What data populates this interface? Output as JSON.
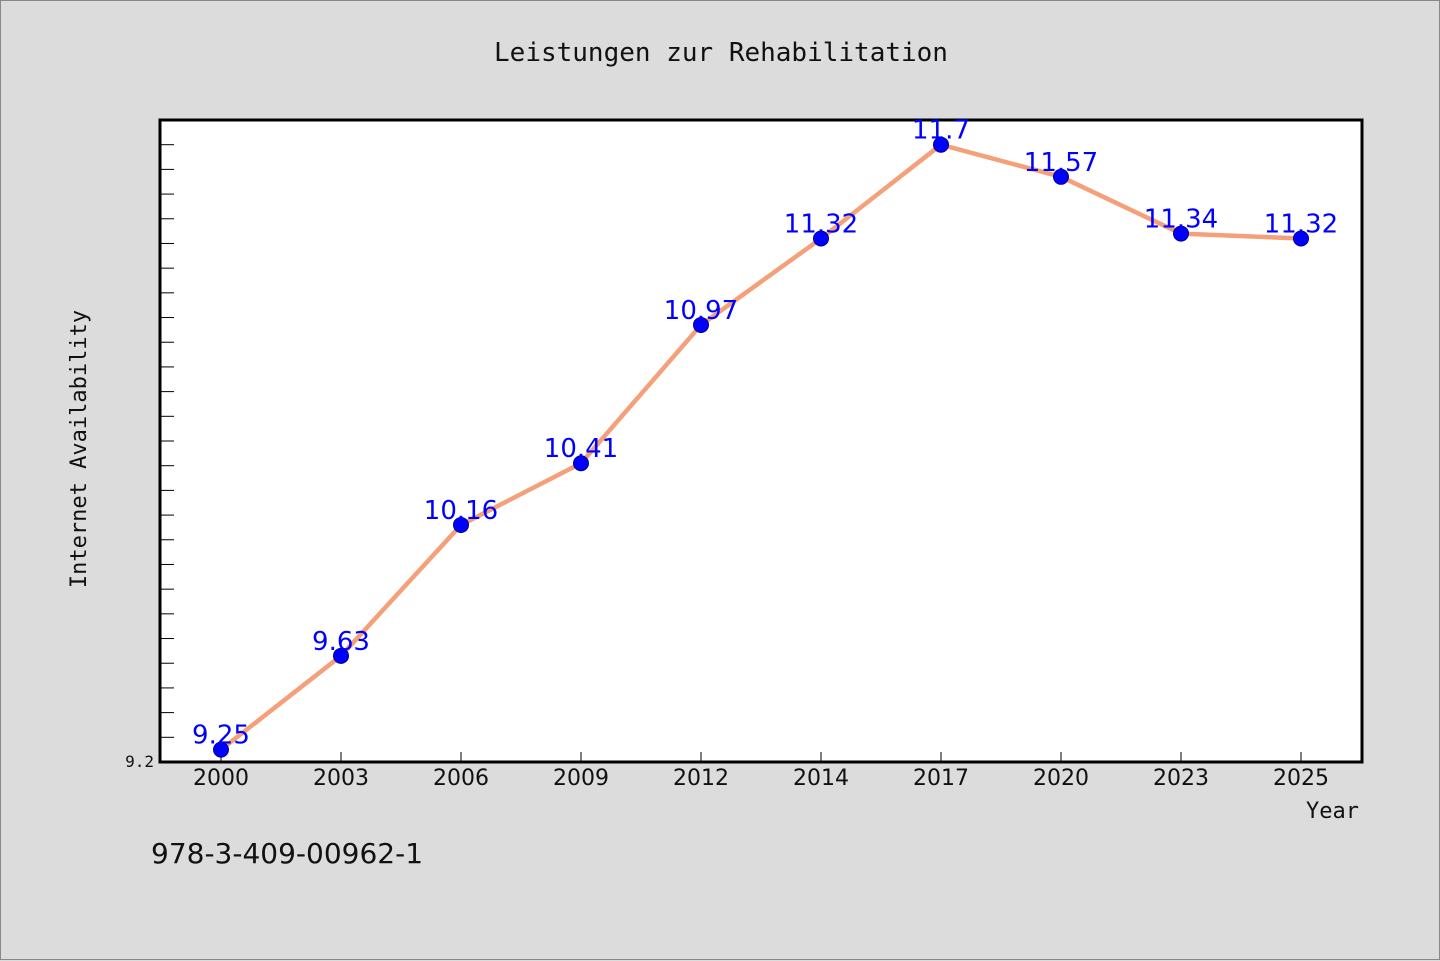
{
  "colors": {
    "background": "#dcdcdc",
    "plot_background": "#ffffff",
    "line": "#f4a07a",
    "marker": "#0000ff",
    "data_label": "#0000ff"
  },
  "chart_data": {
    "type": "line",
    "title": "Leistungen zur Rehabilitation",
    "xlabel": "Year",
    "ylabel": "Internet Availability",
    "categories": [
      "2000",
      "2003",
      "2006",
      "2009",
      "2012",
      "2014",
      "2017",
      "2020",
      "2023",
      "2025"
    ],
    "series": [
      {
        "values": [
          9.25,
          9.63,
          10.16,
          10.41,
          10.97,
          11.32,
          11.7,
          11.57,
          11.34,
          11.32
        ],
        "labels": [
          "9.25",
          "9.63",
          "10.16",
          "10.41",
          "10.97",
          "11.32",
          "11.7",
          "11.57",
          "11.34",
          "11.32"
        ]
      }
    ],
    "ylim": [
      9.2,
      11.8
    ],
    "y_tick_labels": [
      "9.2"
    ],
    "grid": false,
    "legend": "none"
  },
  "footer": {
    "isbn": "978-3-409-00962-1"
  }
}
